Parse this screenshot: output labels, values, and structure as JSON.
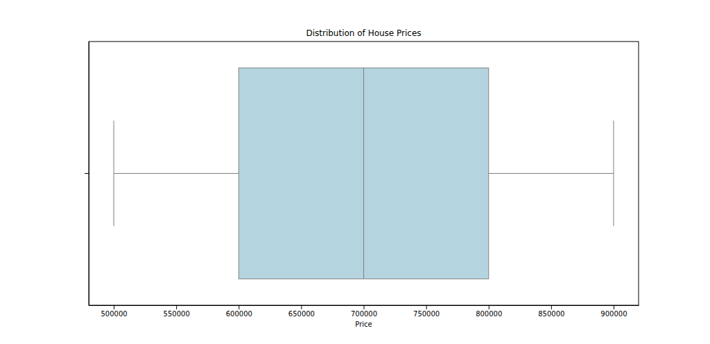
{
  "chart_data": {
    "type": "box",
    "title": "Distribution of House Prices",
    "x_label": "Price",
    "orientation": "horizontal",
    "categories": [
      null
    ],
    "min": [
      500000
    ],
    "q1": [
      600000
    ],
    "median": [
      700000
    ],
    "q3": [
      800000
    ],
    "max": [
      900000
    ],
    "color": "#b4d4df",
    "xlim": [
      480000,
      920000
    ],
    "xticks": [
      500000,
      550000,
      600000,
      650000,
      700000,
      750000,
      800000,
      850000,
      900000
    ],
    "tick_labels": "x",
    "grid": false
  }
}
